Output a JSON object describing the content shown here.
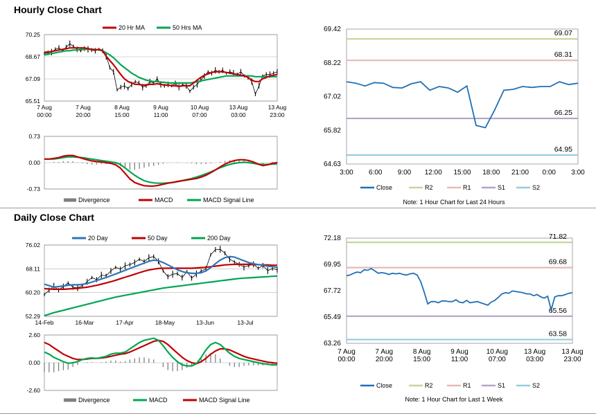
{
  "sections": {
    "hourly_title": "Hourly Close Chart",
    "daily_title": "Daily Close Chart",
    "hourly_note": "Note: 1 Hour Chart for Last 24 Hours",
    "daily_note": "Note: 1 Hour Chart for Last 1 Week"
  },
  "colors": {
    "red": "#c00000",
    "green": "#00a651",
    "blue": "#2e75b6",
    "gray": "#7f7f7f",
    "close": "#1f6fb5",
    "r2": "#c4d79b",
    "r1": "#e6b9b8",
    "s1": "#b3a2c7",
    "s2": "#93cddd"
  },
  "chart_data": [
    {
      "id": "hourly_price",
      "type": "line",
      "title": "",
      "legend": [
        "20 Hr MA",
        "50 Hrs MA"
      ],
      "ylim": [
        65.51,
        70.25
      ],
      "yticks": [
        "70.25",
        "68.67",
        "67.09",
        "65.51"
      ],
      "xticks": [
        "7 Aug\n00:00",
        "7 Aug\n20:00",
        "8 Aug\n15:00",
        "9 Aug\n11:00",
        "10 Aug\n07:00",
        "13 Aug\n03:00",
        "13 Aug\n23:00"
      ],
      "series": [
        {
          "name": "Price",
          "values": [
            68.9,
            68.95,
            69.0,
            69.2,
            69.3,
            69.1,
            69.35,
            69.6,
            69.4,
            69.2,
            69.1,
            69.25,
            69.2,
            69.15,
            69.1,
            69.2,
            69.1,
            68.7,
            67.9,
            67.6,
            66.3,
            66.5,
            66.6,
            66.4,
            66.7,
            66.9,
            66.8,
            66.5,
            66.6,
            66.9,
            66.8,
            67.1,
            66.7,
            66.6,
            66.7,
            66.6,
            66.8,
            66.5,
            66.7,
            66.6,
            66.2,
            66.5,
            66.7,
            67.0,
            67.3,
            67.6,
            67.5,
            67.7,
            67.6,
            67.7,
            67.5,
            67.6,
            67.5,
            67.4,
            67.6,
            67.3,
            67.2,
            66.9,
            66.0,
            66.6,
            67.3,
            67.4,
            67.4,
            67.5,
            67.6
          ]
        },
        {
          "name": "20 Hr MA",
          "values": [
            69.0,
            69.0,
            69.05,
            69.1,
            69.15,
            69.2,
            69.25,
            69.3,
            69.3,
            69.3,
            69.3,
            69.3,
            69.25,
            69.2,
            69.15,
            69.2,
            69.1,
            68.7,
            68.4,
            68.1,
            67.75,
            67.4,
            67.1,
            66.9,
            66.8,
            66.7,
            66.7,
            66.65,
            66.65,
            66.7,
            66.7,
            66.75,
            66.7,
            66.65,
            66.65,
            66.6,
            66.6,
            66.55,
            66.6,
            66.6,
            66.6,
            66.8,
            67.0,
            67.2,
            67.35,
            67.45,
            67.55,
            67.6,
            67.6,
            67.6,
            67.55,
            67.5,
            67.45,
            67.4,
            67.35,
            67.3,
            67.2,
            67.0,
            66.9,
            66.9,
            67.1,
            67.2,
            67.3,
            67.35,
            67.4
          ]
        },
        {
          "name": "50 Hrs MA",
          "values": [
            68.8,
            68.85,
            68.9,
            68.95,
            69.0,
            69.05,
            69.1,
            69.1,
            69.15,
            69.15,
            69.2,
            69.2,
            69.2,
            69.2,
            69.2,
            69.15,
            69.1,
            68.95,
            68.8,
            68.6,
            68.35,
            68.1,
            67.9,
            67.7,
            67.5,
            67.35,
            67.2,
            67.1,
            67.0,
            66.95,
            66.9,
            66.9,
            66.85,
            66.85,
            66.8,
            66.8,
            66.8,
            66.8,
            66.8,
            66.8,
            66.8,
            66.85,
            66.9,
            66.95,
            67.0,
            67.05,
            67.1,
            67.15,
            67.2,
            67.25,
            67.3,
            67.3,
            67.3,
            67.3,
            67.3,
            67.3,
            67.3,
            67.3,
            67.25,
            67.25,
            67.25,
            67.25,
            67.25,
            67.25,
            67.25
          ]
        }
      ]
    },
    {
      "id": "hourly_macd",
      "type": "line",
      "legend": [
        "Divergence",
        "MACD",
        "MACD Signal Line"
      ],
      "ylim": [
        -0.73,
        0.73
      ],
      "yticks": [
        "0.73",
        "0.00",
        "-0.73"
      ],
      "series": [
        {
          "name": "MACD",
          "values": [
            0.1,
            0.1,
            0.12,
            0.14,
            0.18,
            0.2,
            0.2,
            0.16,
            0.12,
            0.08,
            0.05,
            0.03,
            0.02,
            0.0,
            -0.02,
            -0.06,
            -0.15,
            -0.3,
            -0.45,
            -0.55,
            -0.6,
            -0.64,
            -0.65,
            -0.65,
            -0.63,
            -0.6,
            -0.57,
            -0.55,
            -0.52,
            -0.5,
            -0.48,
            -0.46,
            -0.44,
            -0.4,
            -0.35,
            -0.28,
            -0.2,
            -0.12,
            -0.04,
            0.02,
            0.06,
            0.08,
            0.08,
            0.06,
            0.02,
            -0.04,
            -0.08,
            -0.06,
            -0.02,
            0.0
          ]
        },
        {
          "name": "MACD Signal Line",
          "values": [
            0.1,
            0.1,
            0.1,
            0.12,
            0.14,
            0.16,
            0.16,
            0.15,
            0.14,
            0.12,
            0.1,
            0.08,
            0.06,
            0.04,
            0.02,
            0.0,
            -0.05,
            -0.15,
            -0.25,
            -0.35,
            -0.43,
            -0.5,
            -0.54,
            -0.56,
            -0.57,
            -0.57,
            -0.56,
            -0.55,
            -0.53,
            -0.5,
            -0.47,
            -0.44,
            -0.4,
            -0.36,
            -0.31,
            -0.26,
            -0.2,
            -0.14,
            -0.09,
            -0.05,
            -0.02,
            0.0,
            0.01,
            0.0,
            -0.02,
            -0.04,
            -0.05,
            -0.05,
            -0.04,
            -0.03
          ]
        },
        {
          "name": "Divergence",
          "values": [
            0.0,
            0.0,
            0.02,
            0.02,
            0.04,
            0.04,
            0.04,
            0.01,
            -0.02,
            -0.04,
            -0.05,
            -0.05,
            -0.04,
            -0.04,
            -0.04,
            -0.06,
            -0.1,
            -0.15,
            -0.2,
            -0.2,
            -0.17,
            -0.14,
            -0.11,
            -0.09,
            -0.06,
            -0.03,
            -0.01,
            0.0,
            0.01,
            0.0,
            -0.01,
            -0.02,
            -0.04,
            -0.04,
            -0.04,
            -0.02,
            0.0,
            0.02,
            0.05,
            0.07,
            0.08,
            0.08,
            0.07,
            0.06,
            0.04,
            0.0,
            -0.03,
            -0.01,
            0.02,
            0.03
          ]
        }
      ]
    },
    {
      "id": "hourly_pivot",
      "type": "line",
      "ylim": [
        64.63,
        69.42
      ],
      "yticks": [
        "69.42",
        "68.22",
        "67.02",
        "65.82",
        "64.63"
      ],
      "xticks": [
        "3:00",
        "6:00",
        "9:00",
        "12:00",
        "15:00",
        "18:00",
        "21:00",
        "0:00",
        "3:00"
      ],
      "legend": [
        "Close",
        "R2",
        "R1",
        "S1",
        "S2"
      ],
      "levels": [
        {
          "name": "R2",
          "value": 69.07,
          "label": "69.07"
        },
        {
          "name": "R1",
          "value": 68.31,
          "label": "68.31"
        },
        {
          "name": "S1",
          "value": 66.25,
          "label": "66.25"
        },
        {
          "name": "S2",
          "value": 64.95,
          "label": "64.95"
        }
      ],
      "series": [
        {
          "name": "Close",
          "values": [
            67.55,
            67.5,
            67.4,
            67.52,
            67.5,
            67.35,
            67.33,
            67.48,
            67.55,
            67.25,
            67.38,
            67.33,
            67.18,
            67.4,
            66.0,
            65.92,
            66.55,
            67.25,
            67.28,
            67.38,
            67.35,
            67.38,
            67.38,
            67.55,
            67.45,
            67.5
          ]
        }
      ]
    },
    {
      "id": "daily_price",
      "type": "line",
      "legend": [
        "20 Day",
        "50 Day",
        "200 Day"
      ],
      "ylim": [
        52.29,
        76.02
      ],
      "yticks": [
        "76.02",
        "68.11",
        "60.20",
        "52.29"
      ],
      "xticks": [
        "14-Feb",
        "16-Mar",
        "17-Apr",
        "18-May",
        "13-Jun",
        "13-Jul"
      ],
      "series": [
        {
          "name": "Price",
          "values": [
            59.5,
            61.0,
            62.3,
            61.0,
            62.2,
            63.4,
            62.0,
            61.8,
            62.5,
            63.8,
            65.2,
            64.5,
            66.0,
            65.8,
            67.4,
            68.6,
            68.0,
            69.1,
            69.5,
            70.2,
            71.3,
            70.5,
            71.8,
            72.2,
            70.6,
            67.4,
            65.5,
            66.3,
            66.5,
            65.2,
            67.2,
            65.0,
            66.4,
            67.3,
            68.1,
            72.8,
            74.5,
            74.6,
            73.3,
            71.3,
            70.4,
            69.6,
            68.7,
            69.2,
            69.6,
            68.3,
            69.2,
            67.5,
            68.2,
            67.8
          ]
        },
        {
          "name": "20 Day",
          "values": [
            63.0,
            62.5,
            62.0,
            62.2,
            62.4,
            62.6,
            62.8,
            62.8,
            62.9,
            63.2,
            63.7,
            64.2,
            64.7,
            65.2,
            65.8,
            66.4,
            67.0,
            67.6,
            68.2,
            68.8,
            69.4,
            70.0,
            70.6,
            71.0,
            70.8,
            70.2,
            69.4,
            68.6,
            67.8,
            67.2,
            66.8,
            66.6,
            66.6,
            66.8,
            67.4,
            68.5,
            69.8,
            71.0,
            71.8,
            72.2,
            72.0,
            71.4,
            70.8,
            70.2,
            69.8,
            69.5,
            69.3,
            69.0,
            68.8,
            68.6
          ]
        },
        {
          "name": "50 Day",
          "values": [
            61.5,
            61.4,
            61.3,
            61.3,
            61.3,
            61.4,
            61.5,
            61.6,
            61.8,
            62.0,
            62.3,
            62.6,
            63.0,
            63.4,
            63.8,
            64.3,
            64.8,
            65.3,
            65.8,
            66.3,
            66.8,
            67.3,
            67.7,
            68.0,
            68.2,
            68.3,
            68.3,
            68.3,
            68.3,
            68.3,
            68.3,
            68.3,
            68.4,
            68.5,
            68.6,
            68.8,
            69.0,
            69.2,
            69.4,
            69.5,
            69.6,
            69.6,
            69.6,
            69.6,
            69.5,
            69.5,
            69.4,
            69.4,
            69.3,
            69.3
          ]
        },
        {
          "name": "200 Day",
          "values": [
            52.5,
            53.0,
            53.5,
            53.9,
            54.3,
            54.7,
            55.1,
            55.5,
            55.9,
            56.3,
            56.7,
            57.1,
            57.5,
            57.9,
            58.3,
            58.7,
            59.0,
            59.3,
            59.6,
            59.9,
            60.2,
            60.5,
            60.8,
            61.1,
            61.4,
            61.7,
            61.9,
            62.1,
            62.3,
            62.5,
            62.7,
            62.9,
            63.1,
            63.3,
            63.5,
            63.7,
            63.9,
            64.1,
            64.3,
            64.5,
            64.7,
            64.9,
            65.0,
            65.1,
            65.2,
            65.3,
            65.4,
            65.5,
            65.6,
            65.7
          ]
        }
      ]
    },
    {
      "id": "daily_macd",
      "type": "line",
      "legend": [
        "Divergence",
        "MACD",
        "MACD Signal Line"
      ],
      "ylim": [
        -2.6,
        2.6
      ],
      "yticks": [
        "2.60",
        "0.00",
        "-2.60"
      ],
      "series": [
        {
          "name": "MACD",
          "values": [
            1.0,
            0.8,
            0.5,
            0.3,
            0.1,
            -0.05,
            0.0,
            0.1,
            0.3,
            0.4,
            0.45,
            0.4,
            0.5,
            0.6,
            0.8,
            0.9,
            0.9,
            1.0,
            1.3,
            1.6,
            1.9,
            2.1,
            2.2,
            2.3,
            2.1,
            1.6,
            1.0,
            0.5,
            0.1,
            -0.2,
            -0.3,
            -0.3,
            -0.1,
            0.5,
            1.2,
            1.7,
            1.9,
            1.7,
            1.3,
            0.9,
            0.6,
            0.4,
            0.3,
            0.2,
            0.1,
            0.0,
            -0.1,
            -0.15,
            -0.2,
            -0.2
          ]
        },
        {
          "name": "MACD Signal Line",
          "values": [
            1.9,
            1.7,
            1.4,
            1.1,
            0.8,
            0.6,
            0.4,
            0.3,
            0.3,
            0.35,
            0.4,
            0.4,
            0.45,
            0.5,
            0.6,
            0.7,
            0.8,
            0.85,
            1.0,
            1.2,
            1.4,
            1.6,
            1.8,
            2.0,
            2.1,
            2.0,
            1.7,
            1.3,
            0.9,
            0.5,
            0.2,
            0.0,
            -0.1,
            0.1,
            0.4,
            0.8,
            1.1,
            1.3,
            1.3,
            1.2,
            1.0,
            0.8,
            0.6,
            0.45,
            0.35,
            0.25,
            0.15,
            0.05,
            0.0,
            -0.05
          ]
        },
        {
          "name": "Divergence",
          "values": [
            -0.9,
            -0.9,
            -0.9,
            -0.8,
            -0.7,
            -0.65,
            -0.4,
            -0.2,
            0.0,
            0.05,
            0.05,
            0.0,
            0.05,
            0.1,
            0.2,
            0.2,
            0.1,
            0.15,
            0.3,
            0.4,
            0.5,
            0.5,
            0.4,
            0.3,
            0.0,
            -0.4,
            -0.7,
            -0.8,
            -0.8,
            -0.7,
            -0.5,
            -0.3,
            0.0,
            0.4,
            0.8,
            0.9,
            0.8,
            0.4,
            0.0,
            -0.3,
            -0.4,
            -0.4,
            -0.3,
            -0.25,
            -0.25,
            -0.25,
            -0.25,
            -0.2,
            -0.2,
            -0.15
          ]
        }
      ]
    },
    {
      "id": "daily_pivot",
      "type": "line",
      "ylim": [
        63.26,
        72.18
      ],
      "yticks": [
        "72.18",
        "69.95",
        "67.72",
        "65.49",
        "63.26"
      ],
      "xticks": [
        "7 Aug\n00:00",
        "7 Aug\n20:00",
        "8 Aug\n15:00",
        "9 Aug\n11:00",
        "10 Aug\n07:00",
        "13 Aug\n03:00",
        "13 Aug\n23:00"
      ],
      "legend": [
        "Close",
        "R2",
        "R1",
        "S1",
        "S2"
      ],
      "levels": [
        {
          "name": "R2",
          "value": 71.82,
          "label": "71.82"
        },
        {
          "name": "R1",
          "value": 69.68,
          "label": "69.68"
        },
        {
          "name": "S1",
          "value": 65.56,
          "label": "65.56"
        },
        {
          "name": "S2",
          "value": 63.58,
          "label": "63.58"
        }
      ],
      "series": [
        {
          "name": "Close",
          "values": [
            69.0,
            69.05,
            69.2,
            69.3,
            69.25,
            69.5,
            69.45,
            69.6,
            69.4,
            69.2,
            69.25,
            69.2,
            69.1,
            69.2,
            69.15,
            69.2,
            69.1,
            69.05,
            69.15,
            69.2,
            69.05,
            68.5,
            67.6,
            66.6,
            66.8,
            66.8,
            66.7,
            66.85,
            66.85,
            66.8,
            66.8,
            66.95,
            66.75,
            66.7,
            66.9,
            66.7,
            66.75,
            66.8,
            66.7,
            66.6,
            66.5,
            66.75,
            66.9,
            67.15,
            67.45,
            67.55,
            67.5,
            67.7,
            67.65,
            67.6,
            67.55,
            67.45,
            67.45,
            67.3,
            67.4,
            67.2,
            67.1,
            67.25,
            66.1,
            67.2,
            67.3,
            67.3,
            67.4,
            67.5,
            67.55
          ]
        }
      ]
    }
  ]
}
